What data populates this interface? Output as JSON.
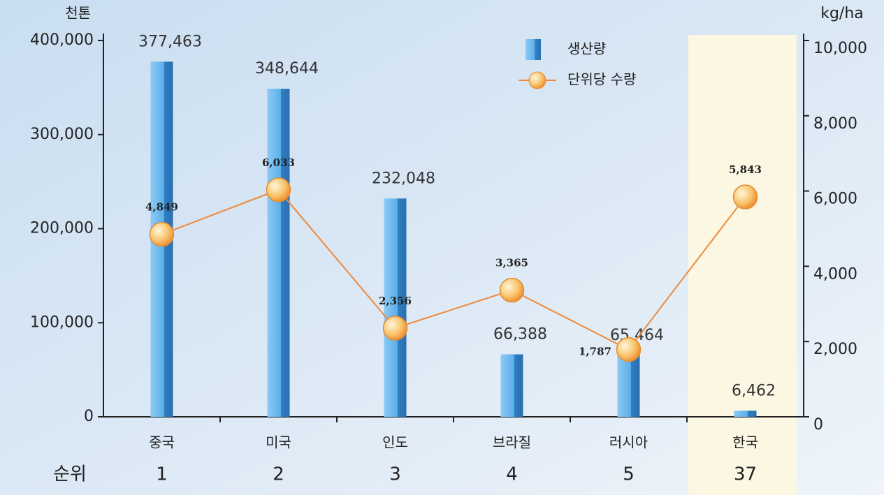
{
  "chart_data": {
    "type": "bar",
    "categories": [
      "중국",
      "미국",
      "인도",
      "브라질",
      "러시아",
      "한국"
    ],
    "rank_label": "순위",
    "ranks": [
      1,
      2,
      3,
      4,
      5,
      37
    ],
    "y_label": "천톤",
    "y2_label": "kg/ha",
    "ylim": [
      0,
      400000
    ],
    "yticks": [
      0,
      {
        "value": 100000,
        "label": "100,000"
      },
      {
        "value": 200000,
        "label": "200,000"
      },
      {
        "value": 300000,
        "label": "300,000"
      },
      {
        "value": 400000,
        "label": "400,000"
      }
    ],
    "y2lim": [
      0,
      10000
    ],
    "y2ticks": [
      0,
      {
        "value": 2000,
        "label": "2,000"
      },
      {
        "value": 4000,
        "label": "4,000"
      },
      {
        "value": 6000,
        "label": "6,000"
      },
      {
        "value": 8000,
        "label": "8,000"
      },
      {
        "value": 10000,
        "label": "10,000"
      }
    ],
    "series": [
      {
        "name": "생산량",
        "type": "bar",
        "color": "#5aaee8",
        "values": [
          377463,
          348644,
          232048,
          66388,
          65464,
          6462
        ],
        "value_labels": [
          "377,463",
          "348,644",
          "232,048",
          "66,388",
          "65,464",
          "6,462"
        ]
      },
      {
        "name": "단위당 수량",
        "type": "line",
        "axis": "y2",
        "color": "#f0893a",
        "values": [
          4849,
          6033,
          2356,
          3365,
          1787,
          5843
        ],
        "value_labels": [
          "4,849",
          "6,033",
          "2,356",
          "3,365",
          "1,787",
          "5,843"
        ]
      }
    ],
    "legend": "top-right"
  }
}
